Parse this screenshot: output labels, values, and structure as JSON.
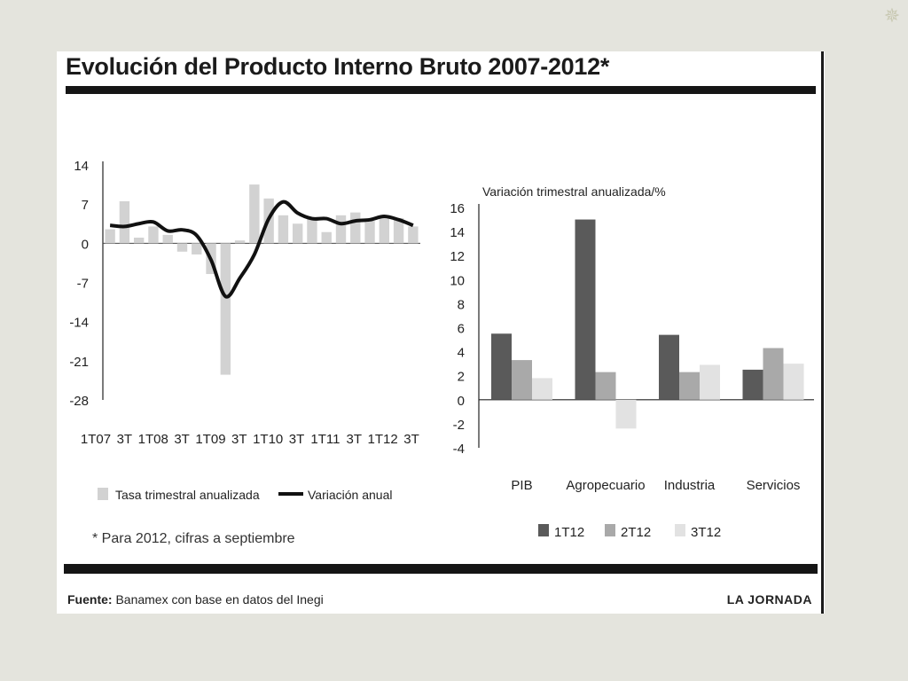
{
  "title": "Evolución del Producto Interno Bruto 2007-2012*",
  "footnote": "* Para 2012, cifras a septiembre",
  "footer": {
    "source_label": "Fuente:",
    "source_text": "Banamex con base en datos del Inegi",
    "brand": "LA JORNADA"
  },
  "colors": {
    "background": "#e4e4dd",
    "quarterly_bars": "#d2d2d2",
    "annual_line": "#111111",
    "series_1T12": "#5a5a5a",
    "series_2T12": "#a9a9a9",
    "series_3T12": "#e2e2e2"
  },
  "chart_data": [
    {
      "type": "bar+line",
      "yticks": [
        14,
        7,
        0,
        -7,
        -14,
        -21,
        -28
      ],
      "ylim": [
        -28,
        14
      ],
      "xlabels": [
        "1T07",
        "3T",
        "1T08",
        "3T",
        "1T09",
        "3T",
        "1T10",
        "3T",
        "1T11",
        "3T",
        "1T12",
        "3T"
      ],
      "legend": [
        {
          "label": "Tasa trimestral anualizada",
          "kind": "bar"
        },
        {
          "label": "Variación anual",
          "kind": "line"
        }
      ],
      "series": [
        {
          "name": "Tasa trimestral anualizada",
          "kind": "bar",
          "values": [
            2.5,
            7.5,
            1.0,
            3.0,
            1.5,
            -1.5,
            -2.0,
            -5.5,
            -23.5,
            0.5,
            10.5,
            8.0,
            5.0,
            3.5,
            4.5,
            2.0,
            5.0,
            5.5,
            4.0,
            5.0,
            4.5,
            3.0
          ]
        },
        {
          "name": "Variación anual",
          "kind": "line",
          "values": [
            3.2,
            3.0,
            3.5,
            3.8,
            2.2,
            2.4,
            1.4,
            -3.0,
            -9.5,
            -6.2,
            -2.0,
            4.4,
            7.4,
            5.4,
            4.4,
            4.4,
            3.5,
            4.0,
            4.2,
            4.8,
            4.2,
            3.2
          ]
        }
      ]
    },
    {
      "type": "bar",
      "title": "Variación trimestral anualizada/%",
      "categories": [
        "PIB",
        "Agropecuario",
        "Industria",
        "Servicios"
      ],
      "yticks": [
        16,
        14,
        12,
        10,
        8,
        6,
        4,
        2,
        0,
        -2,
        -4
      ],
      "ylim": [
        -4,
        16
      ],
      "series": [
        {
          "name": "1T12",
          "values": [
            5.5,
            15.0,
            5.4,
            2.5
          ]
        },
        {
          "name": "2T12",
          "values": [
            3.3,
            2.3,
            2.3,
            4.3
          ]
        },
        {
          "name": "3T12",
          "values": [
            1.8,
            -2.4,
            2.9,
            3.0
          ]
        }
      ]
    }
  ]
}
